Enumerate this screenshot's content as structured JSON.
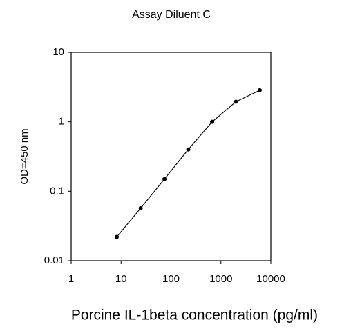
{
  "chart_data": {
    "type": "line",
    "title": "Assay Diluent C",
    "x_label": "Porcine IL-1beta concentration (pg/ml)",
    "y_label": "OD=450 nm",
    "x": [
      8.2,
      24.7,
      74,
      222,
      667,
      2000,
      6000
    ],
    "series": [
      {
        "color": "#000000",
        "values": [
          0.022,
          0.057,
          0.15,
          0.4,
          1.0,
          1.95,
          2.85
        ]
      }
    ],
    "xlim": [
      1,
      10000
    ],
    "xticks": [
      1,
      10,
      100,
      1000,
      10000
    ],
    "ylim": [
      0.01,
      10
    ],
    "yticks": [
      0.01,
      0.1,
      1,
      10
    ],
    "x_log": true,
    "y_log": true,
    "grid": false
  }
}
